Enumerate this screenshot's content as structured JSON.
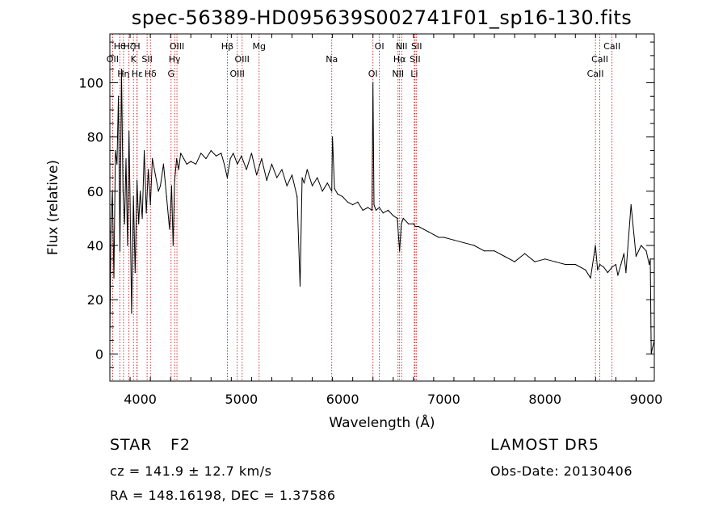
{
  "chart_data": {
    "type": "line",
    "title": "spec-56389-HD095639S002741F01_sp16-130.fits",
    "xlabel": "Wavelength (Å)",
    "ylabel": "Flux (relative)",
    "xlim": [
      3700,
      9080
    ],
    "ylim": [
      -10,
      118
    ],
    "xticks": [
      4000,
      5000,
      6000,
      7000,
      8000,
      9000
    ],
    "yticks": [
      0,
      20,
      40,
      60,
      80,
      100
    ],
    "grid": false,
    "line_color": "#000000",
    "marker_color": "#cc0000",
    "series": [
      {
        "x": [
          3700,
          3710,
          3725,
          3740,
          3755,
          3770,
          3785,
          3800,
          3815,
          3830,
          3845,
          3860,
          3875,
          3889,
          3900,
          3915,
          3933,
          3950,
          3968,
          3985,
          4000,
          4020,
          4040,
          4060,
          4080,
          4101,
          4120,
          4150,
          4180,
          4200,
          4230,
          4260,
          4290,
          4310,
          4325,
          4340,
          4360,
          4380,
          4400,
          4430,
          4460,
          4500,
          4550,
          4600,
          4650,
          4700,
          4750,
          4800,
          4830,
          4861,
          4890,
          4920,
          4960,
          5000,
          5050,
          5100,
          5150,
          5200,
          5250,
          5300,
          5350,
          5400,
          5450,
          5500,
          5550,
          5580,
          5600,
          5620,
          5650,
          5700,
          5750,
          5800,
          5850,
          5893,
          5900,
          5920,
          5950,
          6000,
          6050,
          6100,
          6150,
          6200,
          6250,
          6290,
          6300,
          6310,
          6330,
          6363,
          6400,
          6450,
          6500,
          6540,
          6563,
          6580,
          6600,
          6650,
          6700,
          6720,
          6750,
          6800,
          6850,
          6900,
          6950,
          7000,
          7100,
          7200,
          7300,
          7400,
          7500,
          7600,
          7700,
          7800,
          7900,
          8000,
          8100,
          8200,
          8300,
          8400,
          8450,
          8498,
          8520,
          8542,
          8580,
          8620,
          8662,
          8700,
          8720,
          8750,
          8780,
          8800,
          8850,
          8900,
          8950,
          9000,
          9030,
          9040,
          9050,
          9060,
          9080
        ],
        "y": [
          5,
          45,
          60,
          28,
          75,
          70,
          95,
          38,
          105,
          60,
          48,
          72,
          40,
          82,
          55,
          15,
          58,
          30,
          64,
          48,
          60,
          50,
          75,
          52,
          68,
          55,
          72,
          66,
          60,
          62,
          70,
          58,
          46,
          62,
          40,
          64,
          72,
          68,
          74,
          72,
          70,
          71,
          70,
          74,
          72,
          75,
          73,
          74,
          70,
          65,
          72,
          74,
          70,
          73,
          68,
          74,
          66,
          72,
          64,
          70,
          65,
          68,
          62,
          66,
          58,
          25,
          65,
          63,
          68,
          62,
          65,
          60,
          63,
          60,
          80,
          61,
          59,
          58,
          56,
          55,
          56,
          53,
          54,
          53,
          100,
          55,
          53,
          54,
          52,
          53,
          51,
          50,
          38,
          48,
          50,
          48,
          48,
          47,
          47,
          46,
          45,
          44,
          43,
          43,
          42,
          41,
          40,
          38,
          38,
          36,
          34,
          37,
          34,
          35,
          34,
          33,
          33,
          31,
          28,
          40,
          31,
          33,
          32,
          30,
          32,
          33,
          29,
          33,
          37,
          30,
          55,
          36,
          40,
          38,
          33,
          35,
          0,
          2,
          5
        ]
      }
    ],
    "line_markers": [
      {
        "label": "Hθ",
        "x": 3798
      },
      {
        "label": "OII",
        "x": 3727
      },
      {
        "label": "Hη",
        "x": 3835
      },
      {
        "label": "Hζ",
        "x": 3889
      },
      {
        "label": "K",
        "x": 3933
      },
      {
        "label": "Hε",
        "x": 3970
      },
      {
        "label": "H",
        "x": 3968
      },
      {
        "label": "SII",
        "x": 4068
      },
      {
        "label": "Hδ",
        "x": 4101
      },
      {
        "label": "OIII",
        "x": 4363
      },
      {
        "label": "Hγ",
        "x": 4340
      },
      {
        "label": "G",
        "x": 4305
      },
      {
        "label": "Hβ",
        "x": 4861
      },
      {
        "label": "OIII",
        "x": 5007
      },
      {
        "label": "OIII",
        "x": 4959
      },
      {
        "label": "Mg",
        "x": 5175
      },
      {
        "label": "Na",
        "x": 5893
      },
      {
        "label": "OI",
        "x": 6300
      },
      {
        "label": "OI",
        "x": 6363
      },
      {
        "label": "Hα",
        "x": 6563
      },
      {
        "label": "NII",
        "x": 6548
      },
      {
        "label": "NII",
        "x": 6583
      },
      {
        "label": "SII",
        "x": 6716
      },
      {
        "label": "Li",
        "x": 6708
      },
      {
        "label": "SII",
        "x": 6731
      },
      {
        "label": "CaII",
        "x": 8542
      },
      {
        "label": "CaII",
        "x": 8498
      },
      {
        "label": "CaII",
        "x": 8662
      }
    ]
  },
  "info": {
    "class_label": "STAR",
    "subclass": "F2",
    "survey": "LAMOST DR5",
    "velocity": "cz = 141.9 ± 12.7 km/s",
    "obs_date": "Obs-Date: 20130406",
    "coords": "RA = 148.16198, DEC =   1.37586"
  }
}
